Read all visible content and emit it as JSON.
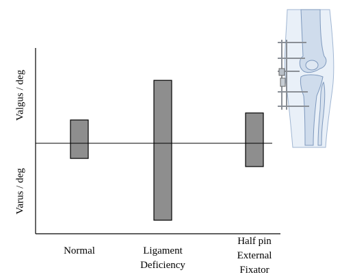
{
  "chart_data": {
    "type": "bar",
    "subtype": "floating-range",
    "categories": [
      "Normal",
      "Ligament\nDeficiency",
      "Half pin\nExternal\nFixator"
    ],
    "ranges": [
      {
        "category": "Normal",
        "low": -0.65,
        "high": 1.0
      },
      {
        "category": "Ligament Deficiency",
        "low": -3.3,
        "high": 2.7
      },
      {
        "category": "Half pin External Fixator",
        "low": -1.0,
        "high": 1.3
      }
    ],
    "ylim": [
      -3.7,
      3.8
    ],
    "baseline": 0,
    "ylabel_positive": "Valgus / deg",
    "ylabel_negative": "Varus / deg",
    "grid": false,
    "bar_color": "#8e8e8e",
    "bar_edge_color": "#000000"
  },
  "illustration": {
    "subject": "knee joint with external fixator",
    "bone_color": "#c9d8ea",
    "outline_color": "#7d98bd",
    "frame_color": "#8a8f96"
  }
}
